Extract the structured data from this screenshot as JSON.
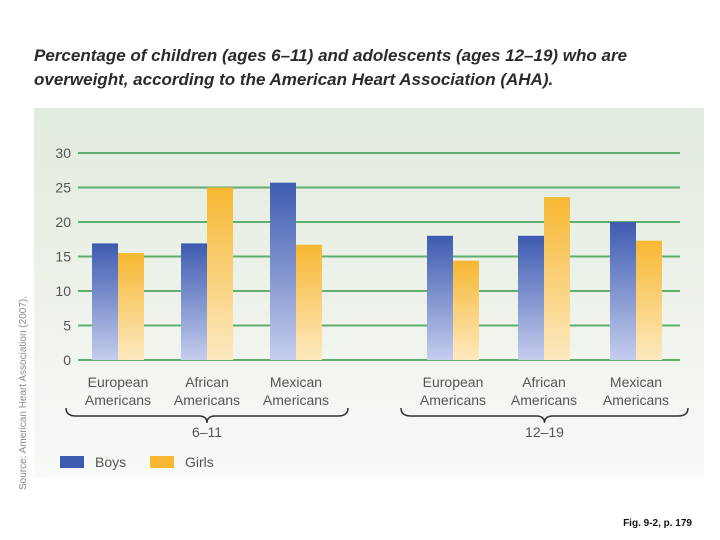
{
  "chart_data": {
    "type": "bar",
    "title": "Percentage of children (ages 6–11) and adolescents (ages 12–19) who are overweight, according to the American Heart Association (AHA).",
    "ylim": [
      0,
      30
    ],
    "yticks": [
      0,
      5,
      10,
      15,
      20,
      25,
      30
    ],
    "groups": [
      {
        "label": "6–11",
        "categories": [
          {
            "line1": "European",
            "line2": "Americans"
          },
          {
            "line1": "African",
            "line2": "Americans"
          },
          {
            "line1": "Mexican",
            "line2": "Americans"
          }
        ]
      },
      {
        "label": "12–19",
        "categories": [
          {
            "line1": "European",
            "line2": "Americans"
          },
          {
            "line1": "African",
            "line2": "Americans"
          },
          {
            "line1": "Mexican",
            "line2": "Americans"
          }
        ]
      }
    ],
    "series": [
      {
        "name": "Boys",
        "values": [
          16.9,
          16.9,
          25.7,
          18.0,
          18.0,
          20.0
        ]
      },
      {
        "name": "Girls",
        "values": [
          15.5,
          25.0,
          16.7,
          14.4,
          23.6,
          17.3
        ]
      }
    ],
    "legend_position": "bottom-left",
    "colors": {
      "boys_top": "#3d5bb0",
      "boys_bottom": "#c5cdee",
      "girls_top": "#f7b732",
      "girls_bottom": "#fde9c0",
      "grid": "#5fae70",
      "text": "#555555"
    }
  },
  "source": "Source: American Heart Association (2007).",
  "caption": "Fig. 9-2, p. 179"
}
